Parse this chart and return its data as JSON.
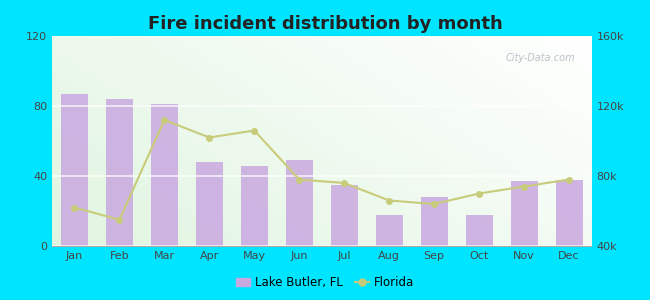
{
  "title": "Fire incident distribution by month",
  "months": [
    "Jan",
    "Feb",
    "Mar",
    "Apr",
    "May",
    "Jun",
    "Jul",
    "Aug",
    "Sep",
    "Oct",
    "Nov",
    "Dec"
  ],
  "bar_values": [
    87,
    84,
    81,
    48,
    46,
    49,
    35,
    18,
    28,
    18,
    37,
    38
  ],
  "line_values": [
    62000,
    55000,
    112000,
    102000,
    106000,
    78000,
    76000,
    66000,
    64000,
    70000,
    74000,
    78000
  ],
  "bar_color": "#c9a8e0",
  "line_color": "#c8cc7a",
  "left_ylim": [
    0,
    120
  ],
  "left_yticks": [
    0,
    40,
    80,
    120
  ],
  "right_ylim": [
    40000,
    160000
  ],
  "right_yticks": [
    40000,
    80000,
    120000,
    160000
  ],
  "right_yticklabels": [
    "40k",
    "80k",
    "120k",
    "160k"
  ],
  "outer_bg": "#00e5ff",
  "watermark": "City-Data.com",
  "legend_lake_butler": "Lake Butler, FL",
  "legend_florida": "Florida"
}
